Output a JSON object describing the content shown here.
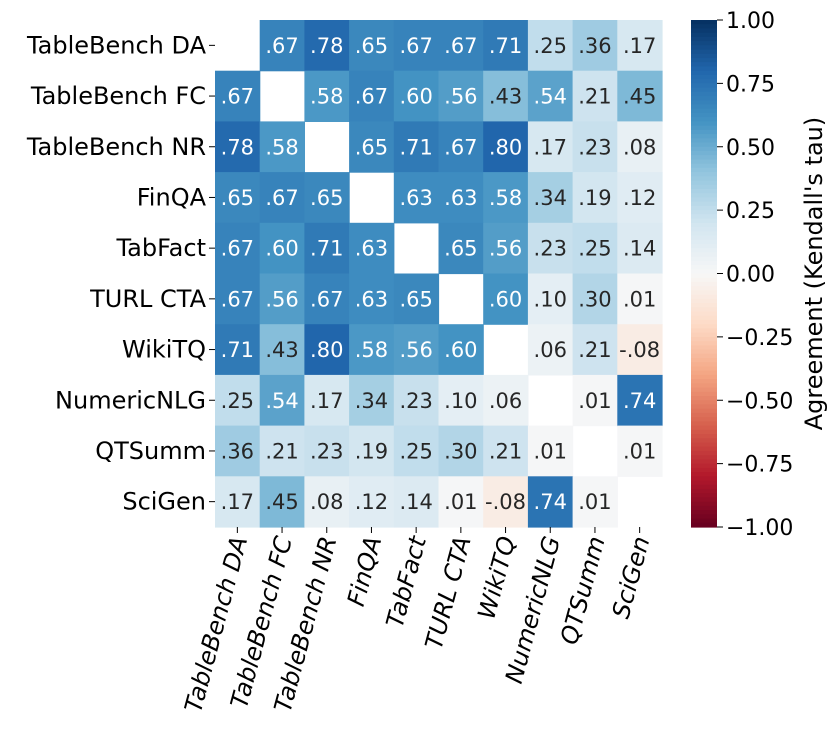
{
  "chart_data": {
    "type": "heatmap",
    "title": "",
    "row_labels": [
      "TableBench DA",
      "TableBench FC",
      "TableBench NR",
      "FinQA",
      "TabFact",
      "TURL CTA",
      "WikiTQ",
      "NumericNLG",
      "QTSumm",
      "SciGen"
    ],
    "col_labels": [
      "TableBench DA",
      "TableBench FC",
      "TableBench NR",
      "FinQA",
      "TabFact",
      "TURL CTA",
      "WikiTQ",
      "NumericNLG",
      "QTSumm",
      "SciGen"
    ],
    "values": [
      [
        null,
        0.67,
        0.78,
        0.65,
        0.67,
        0.67,
        0.71,
        0.25,
        0.36,
        0.17
      ],
      [
        0.67,
        null,
        0.58,
        0.67,
        0.6,
        0.56,
        0.43,
        0.54,
        0.21,
        0.45
      ],
      [
        0.78,
        0.58,
        null,
        0.65,
        0.71,
        0.67,
        0.8,
        0.17,
        0.23,
        0.08
      ],
      [
        0.65,
        0.67,
        0.65,
        null,
        0.63,
        0.63,
        0.58,
        0.34,
        0.19,
        0.12
      ],
      [
        0.67,
        0.6,
        0.71,
        0.63,
        null,
        0.65,
        0.56,
        0.23,
        0.25,
        0.14
      ],
      [
        0.67,
        0.56,
        0.67,
        0.63,
        0.65,
        null,
        0.6,
        0.1,
        0.3,
        0.01
      ],
      [
        0.71,
        0.43,
        0.8,
        0.58,
        0.56,
        0.6,
        null,
        0.06,
        0.21,
        -0.08
      ],
      [
        0.25,
        0.54,
        0.17,
        0.34,
        0.23,
        0.1,
        0.06,
        null,
        0.01,
        0.74
      ],
      [
        0.36,
        0.21,
        0.23,
        0.19,
        0.25,
        0.3,
        0.21,
        0.01,
        null,
        0.01
      ],
      [
        0.17,
        0.45,
        0.08,
        0.12,
        0.14,
        0.01,
        -0.08,
        0.74,
        0.01,
        null
      ]
    ],
    "value_labels": [
      [
        "",
        ".67",
        ".78",
        ".65",
        ".67",
        ".67",
        ".71",
        ".25",
        ".36",
        ".17"
      ],
      [
        ".67",
        "",
        ".58",
        ".67",
        ".60",
        ".56",
        ".43",
        ".54",
        ".21",
        ".45"
      ],
      [
        ".78",
        ".58",
        "",
        ".65",
        ".71",
        ".67",
        ".80",
        ".17",
        ".23",
        ".08"
      ],
      [
        ".65",
        ".67",
        ".65",
        "",
        ".63",
        ".63",
        ".58",
        ".34",
        ".19",
        ".12"
      ],
      [
        ".67",
        ".60",
        ".71",
        ".63",
        "",
        ".65",
        ".56",
        ".23",
        ".25",
        ".14"
      ],
      [
        ".67",
        ".56",
        ".67",
        ".63",
        ".65",
        "",
        ".60",
        ".10",
        ".30",
        ".01"
      ],
      [
        ".71",
        ".43",
        ".80",
        ".58",
        ".56",
        ".60",
        "",
        ".06",
        ".21",
        "-.08"
      ],
      [
        ".25",
        ".54",
        ".17",
        ".34",
        ".23",
        ".10",
        ".06",
        "",
        ".01",
        ".74"
      ],
      [
        ".36",
        ".21",
        ".23",
        ".19",
        ".25",
        ".30",
        ".21",
        ".01",
        "",
        ".01"
      ],
      [
        ".17",
        ".45",
        ".08",
        ".12",
        ".14",
        ".01",
        "-.08",
        ".74",
        ".01",
        ""
      ]
    ],
    "colormap": "RdBu",
    "vmin": -1.0,
    "vmax": 1.0,
    "colorbar": {
      "label": "Agreement (Kendall's tau)",
      "ticks": [
        1.0,
        0.75,
        0.5,
        0.25,
        0.0,
        -0.25,
        -0.5,
        -0.75,
        -1.0
      ],
      "tick_labels": [
        "1.00",
        "0.75",
        "0.50",
        "0.25",
        "0.00",
        "−0.25",
        "−0.50",
        "−0.75",
        "−1.00"
      ]
    },
    "colors": {
      "low": "#67001f",
      "high": "#053061",
      "mid": "#f7f7f7"
    }
  }
}
